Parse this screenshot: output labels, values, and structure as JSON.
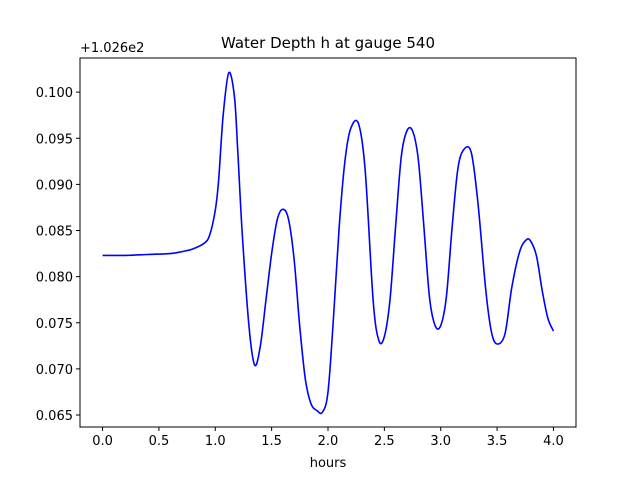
{
  "colors": {
    "line": "#0000ff",
    "axes": "#000000",
    "background": "#ffffff"
  },
  "chart_data": {
    "type": "line",
    "title": "Water Depth h at gauge 540",
    "xlabel": "hours",
    "ylabel": "",
    "y_offset_label": "+1.026e2",
    "xlim": [
      -0.2,
      4.2
    ],
    "ylim": [
      0.0637,
      0.1037
    ],
    "grid": false,
    "x_ticks": [
      0.0,
      0.5,
      1.0,
      1.5,
      2.0,
      2.5,
      3.0,
      3.5,
      4.0
    ],
    "x_tick_labels": [
      "0.0",
      "0.5",
      "1.0",
      "1.5",
      "2.0",
      "2.5",
      "3.0",
      "3.5",
      "4.0"
    ],
    "y_ticks": [
      0.065,
      0.07,
      0.075,
      0.08,
      0.085,
      0.09,
      0.095,
      0.1
    ],
    "y_tick_labels": [
      "0.065",
      "0.070",
      "0.075",
      "0.080",
      "0.085",
      "0.090",
      "0.095",
      "0.100"
    ],
    "series": [
      {
        "color": "#0000ff",
        "x": [
          0.0,
          0.2,
          0.4,
          0.6,
          0.7,
          0.8,
          0.9,
          0.95,
          1.0,
          1.03,
          1.07,
          1.12,
          1.17,
          1.2,
          1.24,
          1.3,
          1.35,
          1.4,
          1.45,
          1.5,
          1.55,
          1.6,
          1.65,
          1.7,
          1.75,
          1.8,
          1.85,
          1.9,
          1.95,
          2.0,
          2.05,
          2.1,
          2.15,
          2.2,
          2.27,
          2.33,
          2.4,
          2.45,
          2.5,
          2.55,
          2.6,
          2.65,
          2.7,
          2.75,
          2.8,
          2.85,
          2.9,
          2.95,
          3.0,
          3.05,
          3.1,
          3.15,
          3.2,
          3.27,
          3.33,
          3.4,
          3.45,
          3.5,
          3.57,
          3.63,
          3.7,
          3.76,
          3.8,
          3.85,
          3.9,
          3.95,
          4.0
        ],
        "y": [
          0.0823,
          0.0823,
          0.0824,
          0.0825,
          0.0827,
          0.083,
          0.0836,
          0.0845,
          0.0872,
          0.0905,
          0.0975,
          0.1021,
          0.0995,
          0.0935,
          0.0845,
          0.0745,
          0.0704,
          0.0725,
          0.0775,
          0.0825,
          0.0862,
          0.0873,
          0.0862,
          0.0818,
          0.0745,
          0.0688,
          0.0662,
          0.0655,
          0.0653,
          0.0675,
          0.0758,
          0.0855,
          0.0925,
          0.096,
          0.0966,
          0.0915,
          0.0775,
          0.0731,
          0.0735,
          0.0775,
          0.0855,
          0.093,
          0.0958,
          0.0958,
          0.0928,
          0.0855,
          0.0778,
          0.0747,
          0.0747,
          0.0778,
          0.0852,
          0.0915,
          0.0937,
          0.0935,
          0.088,
          0.0785,
          0.074,
          0.0727,
          0.0738,
          0.0788,
          0.0827,
          0.084,
          0.0838,
          0.0822,
          0.0785,
          0.0755,
          0.0741
        ]
      }
    ]
  }
}
